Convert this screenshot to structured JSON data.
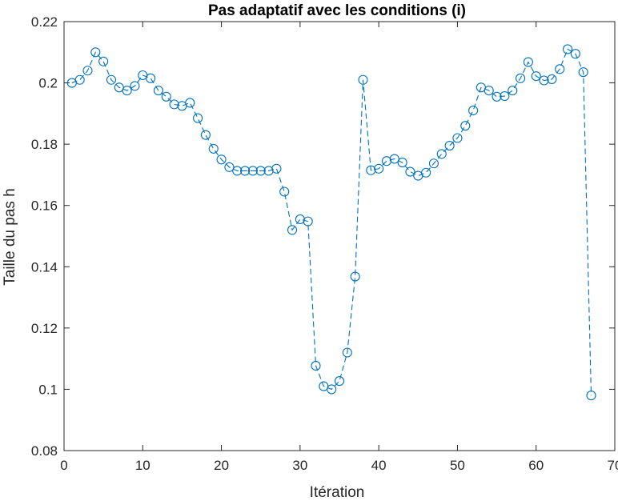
{
  "chart_data": {
    "type": "line",
    "title": "Pas adaptatif avec les conditions (i)",
    "xlabel": "Itération",
    "ylabel": "Taille du pas h",
    "xlim": [
      0,
      70
    ],
    "ylim": [
      0.08,
      0.22
    ],
    "xticks": [
      0,
      10,
      20,
      30,
      40,
      50,
      60,
      70
    ],
    "yticks": [
      0.08,
      0.1,
      0.12,
      0.14,
      0.16,
      0.18,
      0.2,
      0.22
    ],
    "grid": false,
    "colors": {
      "series": "#0072BD",
      "axis": "#262626"
    },
    "series": [
      {
        "line_style": "dashed",
        "marker": "circle",
        "x": [
          1,
          2,
          3,
          4,
          5,
          6,
          7,
          8,
          9,
          10,
          11,
          12,
          13,
          14,
          15,
          16,
          17,
          18,
          19,
          20,
          21,
          22,
          23,
          24,
          25,
          26,
          27,
          28,
          29,
          30,
          31,
          32,
          33,
          34,
          35,
          36,
          37,
          38,
          39,
          40,
          41,
          42,
          43,
          44,
          45,
          46,
          47,
          48,
          49,
          50,
          51,
          52,
          53,
          54,
          55,
          56,
          57,
          58,
          59,
          60,
          61,
          62,
          63,
          64,
          65,
          66,
          67
        ],
        "y": [
          0.2,
          0.201,
          0.204,
          0.21,
          0.207,
          0.201,
          0.1985,
          0.1975,
          0.199,
          0.2025,
          0.2015,
          0.1975,
          0.1955,
          0.193,
          0.1925,
          0.1935,
          0.1885,
          0.183,
          0.1785,
          0.175,
          0.1725,
          0.1713,
          0.1713,
          0.1713,
          0.1713,
          0.1713,
          0.172,
          0.1645,
          0.152,
          0.1555,
          0.1548,
          0.1077,
          0.101,
          0.1,
          0.1027,
          0.112,
          0.1368,
          0.201,
          0.1715,
          0.172,
          0.1745,
          0.1752,
          0.174,
          0.171,
          0.1697,
          0.1707,
          0.1737,
          0.1768,
          0.1795,
          0.182,
          0.186,
          0.191,
          0.1985,
          0.1975,
          0.1955,
          0.1957,
          0.1975,
          0.2015,
          0.2068,
          0.2022,
          0.2008,
          0.2012,
          0.2045,
          0.211,
          0.2095,
          0.2035,
          0.098
        ]
      }
    ]
  }
}
